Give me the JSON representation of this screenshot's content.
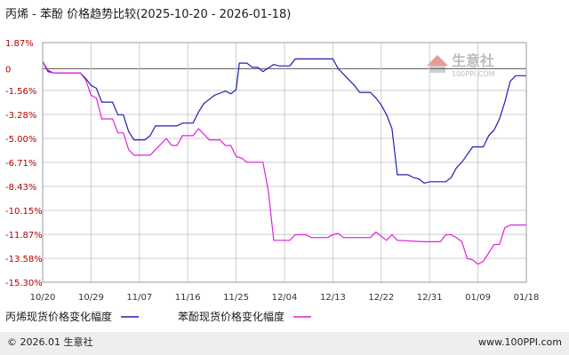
{
  "chart_data": {
    "type": "line",
    "title": "丙烯 - 苯酚 价格趋势比较(2025-10-20 - 2026-01-18)",
    "xlabel": "",
    "ylabel": "",
    "y_ticks": [
      "1.87%",
      "0",
      "-1.56%",
      "-3.28%",
      "-5.00%",
      "-6.71%",
      "-8.43%",
      "-10.15%",
      "-11.87%",
      "-13.58%",
      "-15.30%"
    ],
    "y_tick_values": [
      1.87,
      0,
      -1.56,
      -3.28,
      -5.0,
      -6.71,
      -8.43,
      -10.15,
      -11.87,
      -13.58,
      -15.3
    ],
    "ylim": [
      -15.3,
      1.87
    ],
    "x_ticks": [
      "10/20",
      "10/29",
      "11/07",
      "11/16",
      "11/25",
      "12/04",
      "12/13",
      "12/22",
      "12/31",
      "01/09",
      "01/18"
    ],
    "x_tick_days": [
      0,
      9,
      18,
      27,
      36,
      45,
      54,
      63,
      72,
      81,
      90
    ],
    "xlim_days": [
      0,
      90
    ],
    "x_unit": "days after 10/20",
    "grid": true,
    "legend_position": "bottom-left",
    "series": [
      {
        "name": "丙烯现货价格变化幅度",
        "color": "#1f1fb0",
        "points": [
          [
            0,
            0.5
          ],
          [
            1,
            -0.2
          ],
          [
            2,
            -0.3
          ],
          [
            7,
            -0.3
          ],
          [
            8,
            -0.7
          ],
          [
            9,
            -1.2
          ],
          [
            10,
            -1.4
          ],
          [
            11,
            -2.4
          ],
          [
            13,
            -2.4
          ],
          [
            14,
            -3.3
          ],
          [
            15,
            -3.3
          ],
          [
            16,
            -4.5
          ],
          [
            17,
            -5.1
          ],
          [
            19,
            -5.1
          ],
          [
            20,
            -4.8
          ],
          [
            21,
            -4.1
          ],
          [
            25,
            -4.1
          ],
          [
            26,
            -3.9
          ],
          [
            28,
            -3.9
          ],
          [
            29,
            -3.1
          ],
          [
            30,
            -2.5
          ],
          [
            32,
            -1.9
          ],
          [
            34,
            -1.6
          ],
          [
            35,
            -1.8
          ],
          [
            36,
            -1.5
          ],
          [
            36.6,
            0.4
          ],
          [
            38,
            0.4
          ],
          [
            39,
            0.1
          ],
          [
            40,
            0.1
          ],
          [
            41,
            -0.2
          ],
          [
            43,
            0.3
          ],
          [
            44,
            0.2
          ],
          [
            46,
            0.2
          ],
          [
            47,
            0.7
          ],
          [
            54,
            0.7
          ],
          [
            55,
            0.0
          ],
          [
            56,
            -0.4
          ],
          [
            58,
            -1.2
          ],
          [
            59,
            -1.7
          ],
          [
            61,
            -1.7
          ],
          [
            62,
            -2.1
          ],
          [
            63,
            -2.6
          ],
          [
            64,
            -3.3
          ],
          [
            65,
            -4.3
          ],
          [
            66,
            -7.6
          ],
          [
            68,
            -7.6
          ],
          [
            69,
            -7.8
          ],
          [
            70,
            -7.9
          ],
          [
            71,
            -8.2
          ],
          [
            72,
            -8.1
          ],
          [
            75,
            -8.1
          ],
          [
            76,
            -7.8
          ],
          [
            77,
            -7.1
          ],
          [
            78,
            -6.7
          ],
          [
            80,
            -5.6
          ],
          [
            82,
            -5.6
          ],
          [
            83,
            -4.8
          ],
          [
            84,
            -4.4
          ],
          [
            85,
            -3.6
          ],
          [
            86,
            -2.4
          ],
          [
            87,
            -0.9
          ],
          [
            88,
            -0.5
          ],
          [
            90,
            -0.5
          ]
        ]
      },
      {
        "name": "苯酚现货价格变化幅度",
        "color": "#e020e0",
        "points": [
          [
            0,
            0.5
          ],
          [
            1,
            -0.1
          ],
          [
            2,
            -0.3
          ],
          [
            7,
            -0.3
          ],
          [
            8,
            -0.8
          ],
          [
            9,
            -1.9
          ],
          [
            10,
            -2.1
          ],
          [
            11,
            -3.6
          ],
          [
            13,
            -3.6
          ],
          [
            14,
            -4.6
          ],
          [
            15,
            -4.6
          ],
          [
            16,
            -5.8
          ],
          [
            17,
            -6.2
          ],
          [
            20,
            -6.2
          ],
          [
            21,
            -5.8
          ],
          [
            23,
            -5.0
          ],
          [
            24,
            -5.5
          ],
          [
            25,
            -5.5
          ],
          [
            26,
            -4.8
          ],
          [
            28,
            -4.8
          ],
          [
            29,
            -4.3
          ],
          [
            31,
            -5.1
          ],
          [
            33,
            -5.1
          ],
          [
            34,
            -5.5
          ],
          [
            35,
            -5.5
          ],
          [
            36,
            -6.3
          ],
          [
            37,
            -6.4
          ],
          [
            38,
            -6.7
          ],
          [
            41,
            -6.7
          ],
          [
            42,
            -8.8
          ],
          [
            43,
            -12.3
          ],
          [
            46,
            -12.3
          ],
          [
            47,
            -11.9
          ],
          [
            49,
            -11.9
          ],
          [
            50,
            -12.1
          ],
          [
            53,
            -12.1
          ],
          [
            54,
            -11.9
          ],
          [
            55,
            -11.8
          ],
          [
            56,
            -12.1
          ],
          [
            61,
            -12.1
          ],
          [
            62,
            -11.7
          ],
          [
            63,
            -12.0
          ],
          [
            64,
            -12.3
          ],
          [
            65,
            -11.9
          ],
          [
            66,
            -12.3
          ],
          [
            71,
            -12.4
          ],
          [
            74,
            -12.4
          ],
          [
            75,
            -11.9
          ],
          [
            76,
            -11.9
          ],
          [
            77,
            -12.1
          ],
          [
            78,
            -12.4
          ],
          [
            79,
            -13.6
          ],
          [
            80,
            -13.7
          ],
          [
            81,
            -14.0
          ],
          [
            82,
            -13.8
          ],
          [
            83,
            -13.2
          ],
          [
            84,
            -12.6
          ],
          [
            85,
            -12.6
          ],
          [
            86,
            -11.4
          ],
          [
            87,
            -11.2
          ],
          [
            90,
            -11.2
          ]
        ]
      }
    ]
  },
  "watermark": {
    "text": "生意社",
    "url_text": "100PPI.COM"
  },
  "footer": {
    "left": "© 2026.01 生意社",
    "right": "www.100PPI.com"
  },
  "colors": {
    "axis_tick": "#b00000",
    "grid": "#cccccc",
    "footer_bg": "#eeeeee"
  }
}
